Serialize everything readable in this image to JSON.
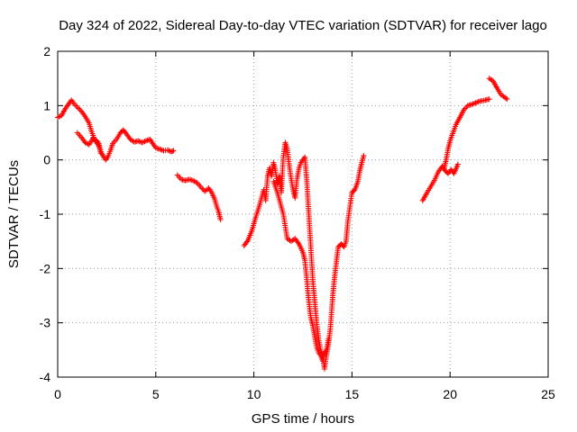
{
  "chart_data": {
    "type": "scatter",
    "title": "Day 324 of 2022, Sidereal Day-to-day VTEC variation (SDTVAR) for receiver lago",
    "xlabel": "GPS time / hours",
    "ylabel": "SDTVAR / TECUs",
    "xlim": [
      0,
      25
    ],
    "ylim": [
      -4,
      2
    ],
    "xticks": [
      0,
      5,
      10,
      15,
      20,
      25
    ],
    "yticks": [
      -4,
      -3,
      -2,
      -1,
      0,
      1,
      2
    ],
    "grid": true,
    "marker": "+",
    "color": "#ff0000",
    "series": [
      {
        "segments": [
          [
            [
              0.0,
              0.78
            ],
            [
              0.2,
              0.82
            ],
            [
              0.4,
              0.95
            ],
            [
              0.6,
              1.05
            ],
            [
              0.7,
              1.1
            ],
            [
              0.8,
              1.05
            ],
            [
              1.0,
              0.97
            ],
            [
              1.2,
              0.9
            ],
            [
              1.4,
              0.8
            ],
            [
              1.6,
              0.68
            ],
            [
              1.7,
              0.55
            ],
            [
              1.8,
              0.45
            ],
            [
              1.9,
              0.35
            ],
            [
              2.0,
              0.32
            ],
            [
              2.1,
              0.25
            ],
            [
              2.2,
              0.15
            ],
            [
              2.35,
              0.05
            ],
            [
              2.45,
              0.0
            ],
            [
              2.55,
              0.05
            ],
            [
              2.7,
              0.18
            ],
            [
              2.8,
              0.3
            ],
            [
              3.0,
              0.38
            ],
            [
              3.2,
              0.5
            ],
            [
              3.35,
              0.55
            ],
            [
              3.5,
              0.48
            ],
            [
              3.7,
              0.38
            ],
            [
              3.9,
              0.33
            ],
            [
              4.1,
              0.35
            ],
            [
              4.3,
              0.32
            ],
            [
              4.5,
              0.35
            ],
            [
              4.7,
              0.38
            ],
            [
              4.85,
              0.3
            ],
            [
              5.0,
              0.22
            ],
            [
              5.2,
              0.2
            ],
            [
              5.4,
              0.17
            ],
            [
              5.6,
              0.18
            ],
            [
              5.8,
              0.15
            ],
            [
              5.9,
              0.17
            ]
          ],
          [
            [
              1.0,
              0.5
            ],
            [
              1.2,
              0.42
            ],
            [
              1.4,
              0.32
            ],
            [
              1.6,
              0.28
            ],
            [
              1.8,
              0.4
            ],
            [
              2.0,
              0.35
            ],
            [
              2.1,
              0.3
            ],
            [
              2.2,
              0.12
            ]
          ],
          [
            [
              6.1,
              -0.28
            ],
            [
              6.3,
              -0.36
            ],
            [
              6.5,
              -0.38
            ],
            [
              6.7,
              -0.36
            ],
            [
              6.9,
              -0.38
            ],
            [
              7.1,
              -0.42
            ],
            [
              7.3,
              -0.5
            ],
            [
              7.5,
              -0.58
            ],
            [
              7.7,
              -0.52
            ],
            [
              7.85,
              -0.6
            ],
            [
              8.0,
              -0.72
            ],
            [
              8.1,
              -0.85
            ],
            [
              8.2,
              -0.95
            ],
            [
              8.3,
              -1.1
            ]
          ],
          [
            [
              9.5,
              -1.58
            ],
            [
              9.7,
              -1.48
            ],
            [
              9.9,
              -1.3
            ],
            [
              10.1,
              -1.05
            ],
            [
              10.3,
              -0.82
            ],
            [
              10.5,
              -0.55
            ],
            [
              10.6,
              -0.75
            ],
            [
              10.7,
              -0.3
            ],
            [
              10.8,
              -0.15
            ],
            [
              10.9,
              -0.3
            ],
            [
              11.0,
              -0.05
            ],
            [
              11.1,
              -0.2
            ],
            [
              11.2,
              -0.45
            ],
            [
              11.3,
              -0.3
            ],
            [
              11.4,
              -0.6
            ],
            [
              11.5,
              0.05
            ],
            [
              11.6,
              0.32
            ],
            [
              11.7,
              0.2
            ],
            [
              11.8,
              -0.1
            ],
            [
              11.9,
              -0.35
            ],
            [
              12.0,
              -0.55
            ],
            [
              12.1,
              -0.7
            ],
            [
              12.2,
              -0.35
            ],
            [
              12.3,
              -0.15
            ],
            [
              12.4,
              -0.05
            ],
            [
              12.5,
              0.0
            ],
            [
              12.6,
              0.05
            ],
            [
              12.7,
              -0.4
            ],
            [
              12.8,
              -1.0
            ],
            [
              12.9,
              -1.6
            ],
            [
              13.0,
              -2.2
            ],
            [
              13.1,
              -2.6
            ],
            [
              13.2,
              -3.0
            ],
            [
              13.3,
              -3.3
            ],
            [
              13.4,
              -3.5
            ],
            [
              13.5,
              -3.6
            ],
            [
              13.6,
              -3.85
            ],
            [
              13.7,
              -3.6
            ],
            [
              13.8,
              -3.4
            ],
            [
              13.9,
              -3.1
            ],
            [
              14.0,
              -2.6
            ],
            [
              14.1,
              -2.2
            ],
            [
              14.2,
              -1.9
            ],
            [
              14.3,
              -1.6
            ],
            [
              14.45,
              -1.55
            ],
            [
              14.6,
              -1.6
            ],
            [
              14.7,
              -1.5
            ],
            [
              14.8,
              -1.1
            ],
            [
              14.9,
              -0.85
            ],
            [
              15.0,
              -0.6
            ],
            [
              15.15,
              -0.55
            ],
            [
              15.3,
              -0.4
            ],
            [
              15.4,
              -0.2
            ],
            [
              15.5,
              -0.05
            ],
            [
              15.6,
              0.08
            ]
          ],
          [
            [
              11.0,
              -0.4
            ],
            [
              11.2,
              -0.6
            ],
            [
              11.5,
              -1.0
            ],
            [
              11.7,
              -1.45
            ],
            [
              11.9,
              -1.5
            ],
            [
              12.1,
              -1.45
            ],
            [
              12.3,
              -1.55
            ],
            [
              12.5,
              -1.7
            ],
            [
              12.6,
              -1.85
            ],
            [
              12.7,
              -2.2
            ],
            [
              12.8,
              -2.6
            ],
            [
              12.9,
              -2.9
            ],
            [
              13.0,
              -3.05
            ],
            [
              13.1,
              -3.25
            ],
            [
              13.2,
              -3.45
            ],
            [
              13.3,
              -3.55
            ],
            [
              13.4,
              -3.6
            ],
            [
              13.5,
              -3.7
            ],
            [
              13.6,
              -3.55
            ],
            [
              13.7,
              -3.5
            ],
            [
              13.8,
              -3.3
            ]
          ],
          [
            [
              18.6,
              -0.75
            ],
            [
              18.8,
              -0.62
            ],
            [
              19.0,
              -0.5
            ],
            [
              19.2,
              -0.38
            ],
            [
              19.4,
              -0.22
            ],
            [
              19.6,
              -0.12
            ],
            [
              19.75,
              -0.2
            ],
            [
              19.9,
              -0.25
            ],
            [
              20.05,
              -0.18
            ],
            [
              20.2,
              -0.25
            ],
            [
              20.4,
              -0.08
            ]
          ],
          [
            [
              19.7,
              -0.15
            ],
            [
              19.8,
              0.0
            ],
            [
              19.9,
              0.2
            ],
            [
              20.0,
              0.35
            ],
            [
              20.1,
              0.45
            ],
            [
              20.3,
              0.65
            ],
            [
              20.5,
              0.78
            ],
            [
              20.7,
              0.92
            ],
            [
              20.9,
              1.0
            ],
            [
              21.1,
              1.02
            ],
            [
              21.3,
              1.05
            ],
            [
              21.5,
              1.08
            ],
            [
              21.8,
              1.1
            ],
            [
              22.0,
              1.12
            ]
          ],
          [
            [
              22.0,
              1.5
            ],
            [
              22.2,
              1.45
            ],
            [
              22.4,
              1.32
            ],
            [
              22.6,
              1.2
            ],
            [
              22.8,
              1.15
            ],
            [
              22.9,
              1.12
            ]
          ]
        ]
      }
    ]
  }
}
